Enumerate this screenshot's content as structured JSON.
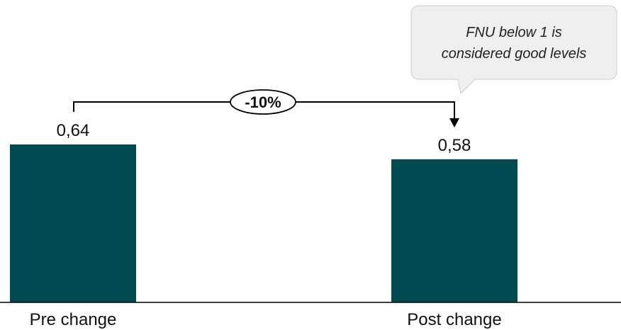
{
  "chart_data": {
    "type": "bar",
    "categories": [
      "Pre change",
      "Post change"
    ],
    "values": [
      0.64,
      0.58
    ],
    "value_labels": [
      "0,64",
      "0,58"
    ],
    "ylim": [
      0,
      0.64
    ],
    "grid": false,
    "colors": {
      "bar": "#004a52",
      "axis": "#000000",
      "bracket": "#000000",
      "callout_fill": "#efefef",
      "callout_border": "#cccccc"
    },
    "annotations": {
      "change": "-10%",
      "callout_lines": [
        "FNU below 1 is",
        "considered good levels"
      ]
    }
  }
}
